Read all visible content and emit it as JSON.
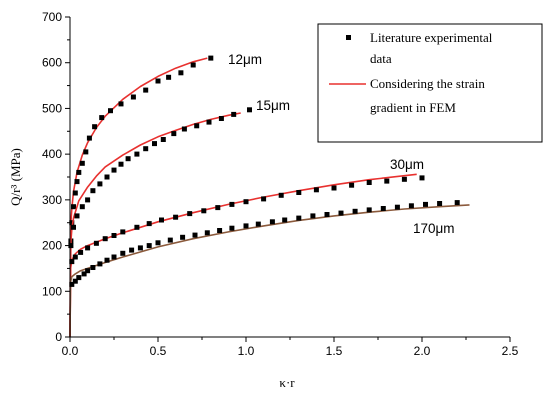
{
  "chart_data": {
    "type": "scatter",
    "xlabel": "κ·r",
    "ylabel": "Q/r³ (MPa)",
    "xlim": [
      0,
      2.5
    ],
    "ylim": [
      0,
      700
    ],
    "x_ticks": [
      "0.0",
      "0.5",
      "1.0",
      "1.5",
      "2.0",
      "2.5"
    ],
    "y_ticks": [
      "0",
      "100",
      "200",
      "300",
      "400",
      "500",
      "600",
      "700"
    ],
    "grid": false,
    "legend_position": "top-right",
    "legend": {
      "markers_label_line1": "Literature experimental",
      "markers_label_line2": "data",
      "line_label_line1": "Considering the strain",
      "line_label_line2": "gradient in FEM",
      "marker_color": "#000000",
      "line_color": "#e8312f"
    },
    "series": [
      {
        "name": "12μm",
        "marker_color": "#000000",
        "line_color": "#e8312f",
        "experimental": {
          "x": [
            0.005,
            0.01,
            0.02,
            0.03,
            0.04,
            0.05,
            0.07,
            0.09,
            0.11,
            0.14,
            0.18,
            0.23,
            0.29,
            0.36,
            0.43,
            0.5,
            0.56,
            0.63,
            0.7,
            0.8
          ],
          "y": [
            210,
            250,
            285,
            315,
            340,
            360,
            380,
            405,
            435,
            460,
            480,
            495,
            510,
            525,
            540,
            560,
            568,
            578,
            595,
            610
          ]
        },
        "fem": {
          "x": [
            0,
            0.002,
            0.005,
            0.01,
            0.02,
            0.04,
            0.07,
            0.1,
            0.15,
            0.2,
            0.3,
            0.4,
            0.5,
            0.6,
            0.7,
            0.78
          ],
          "y": [
            0,
            200,
            250,
            280,
            318,
            360,
            398,
            425,
            458,
            483,
            520,
            548,
            570,
            588,
            602,
            610
          ]
        }
      },
      {
        "name": "15μm",
        "marker_color": "#000000",
        "line_color": "#e8312f",
        "experimental": {
          "x": [
            0.005,
            0.02,
            0.04,
            0.07,
            0.1,
            0.13,
            0.17,
            0.21,
            0.25,
            0.29,
            0.33,
            0.38,
            0.43,
            0.48,
            0.53,
            0.59,
            0.65,
            0.72,
            0.79,
            0.86,
            0.93,
            1.02
          ],
          "y": [
            200,
            240,
            265,
            285,
            300,
            320,
            335,
            350,
            365,
            378,
            390,
            400,
            412,
            423,
            432,
            445,
            455,
            462,
            470,
            478,
            487,
            497
          ]
        },
        "fem": {
          "x": [
            0,
            0.005,
            0.01,
            0.02,
            0.05,
            0.1,
            0.15,
            0.2,
            0.3,
            0.4,
            0.5,
            0.6,
            0.7,
            0.8,
            0.9,
            0.97
          ],
          "y": [
            0,
            210,
            235,
            260,
            298,
            328,
            352,
            372,
            398,
            420,
            438,
            452,
            465,
            476,
            485,
            490
          ]
        }
      },
      {
        "name": "30μm",
        "marker_color": "#000000",
        "line_color": "#e8312f",
        "experimental": {
          "x": [
            0.01,
            0.03,
            0.06,
            0.1,
            0.15,
            0.2,
            0.25,
            0.3,
            0.38,
            0.45,
            0.52,
            0.6,
            0.68,
            0.76,
            0.84,
            0.92,
            1.0,
            1.1,
            1.2,
            1.3,
            1.4,
            1.5,
            1.6,
            1.7,
            1.8,
            1.9,
            2.0
          ],
          "y": [
            165,
            175,
            185,
            195,
            205,
            215,
            222,
            230,
            240,
            248,
            256,
            262,
            270,
            276,
            283,
            290,
            296,
            302,
            310,
            316,
            322,
            326,
            332,
            338,
            341,
            345,
            348
          ]
        },
        "fem": {
          "x": [
            0,
            0.003,
            0.01,
            0.03,
            0.06,
            0.1,
            0.2,
            0.3,
            0.5,
            0.7,
            0.9,
            1.1,
            1.3,
            1.5,
            1.7,
            1.97
          ],
          "y": [
            0,
            148,
            168,
            182,
            192,
            200,
            215,
            228,
            252,
            272,
            290,
            306,
            320,
            333,
            344,
            356
          ]
        }
      },
      {
        "name": "170μm",
        "marker_color": "#000000",
        "line_color": "#8b5a3c",
        "experimental": {
          "x": [
            0.01,
            0.03,
            0.05,
            0.08,
            0.1,
            0.13,
            0.17,
            0.21,
            0.25,
            0.3,
            0.35,
            0.4,
            0.45,
            0.5,
            0.57,
            0.64,
            0.71,
            0.78,
            0.85,
            0.92,
            1.0,
            1.07,
            1.15,
            1.22,
            1.3,
            1.38,
            1.46,
            1.54,
            1.62,
            1.7,
            1.78,
            1.86,
            1.94,
            2.02,
            2.1,
            2.2
          ],
          "y": [
            115,
            122,
            130,
            138,
            145,
            152,
            160,
            168,
            175,
            183,
            190,
            195,
            200,
            206,
            212,
            218,
            223,
            228,
            233,
            238,
            243,
            247,
            252,
            256,
            260,
            265,
            268,
            271,
            275,
            278,
            281,
            284,
            287,
            290,
            292,
            294
          ]
        },
        "fem": {
          "x": [
            0,
            0.003,
            0.01,
            0.03,
            0.06,
            0.1,
            0.2,
            0.3,
            0.5,
            0.7,
            0.9,
            1.1,
            1.3,
            1.5,
            1.7,
            1.9,
            2.1,
            2.27
          ],
          "y": [
            0,
            120,
            132,
            138,
            145,
            150,
            163,
            175,
            197,
            215,
            230,
            243,
            255,
            265,
            273,
            280,
            285,
            289
          ]
        }
      }
    ]
  }
}
